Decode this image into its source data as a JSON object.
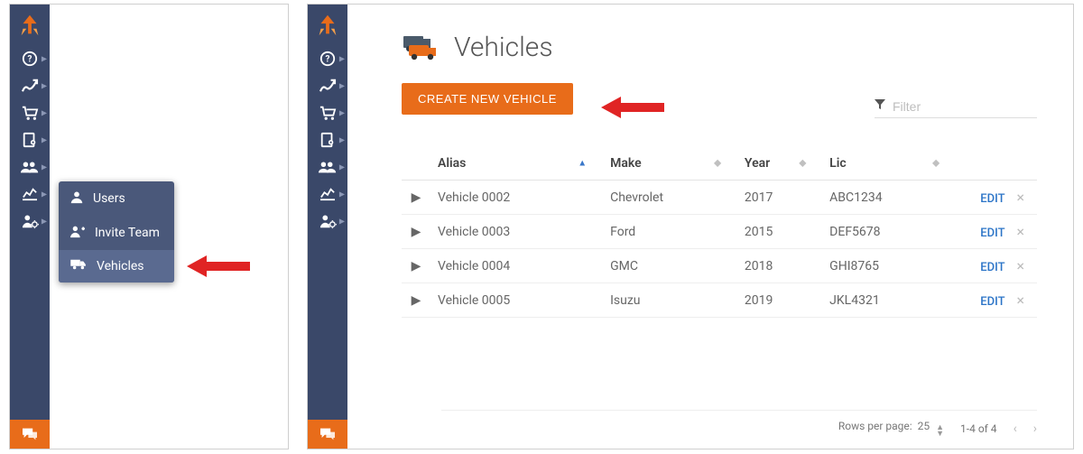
{
  "colors": {
    "sidebar_bg": "#3a4869",
    "flyout_bg": "#4a587a",
    "flyout_active_bg": "#5a6a90",
    "accent": "#e86c1a",
    "arrow": "#e02424",
    "link": "#2b74c7",
    "text": "#555555",
    "muted": "#bdbdbd"
  },
  "sidebar_icons": [
    "help-icon",
    "growth-icon",
    "cart-icon",
    "book-location-icon",
    "team-icon",
    "chart-line-icon",
    "user-gear-icon"
  ],
  "flyout": {
    "items": [
      {
        "label": "Users",
        "icon": "user-icon",
        "active": false
      },
      {
        "label": "Invite Team",
        "icon": "invite-icon",
        "active": false
      },
      {
        "label": "Vehicles",
        "icon": "truck-icon",
        "active": true
      }
    ]
  },
  "page": {
    "title": "Vehicles",
    "create_button": "CREATE NEW VEHICLE",
    "filter_placeholder": "Filter"
  },
  "table": {
    "columns": [
      "Alias",
      "Make",
      "Year",
      "Lic"
    ],
    "sort_column_index": 0,
    "sort_direction": "asc",
    "edit_label": "EDIT",
    "rows": [
      {
        "alias": "Vehicle 0002",
        "make": "Chevrolet",
        "year": "2017",
        "lic": "ABC1234"
      },
      {
        "alias": "Vehicle 0003",
        "make": "Ford",
        "year": "2015",
        "lic": "DEF5678"
      },
      {
        "alias": "Vehicle 0004",
        "make": "GMC",
        "year": "2018",
        "lic": "GHI8765"
      },
      {
        "alias": "Vehicle 0005",
        "make": "Isuzu",
        "year": "2019",
        "lic": "JKL4321"
      }
    ]
  },
  "pager": {
    "rows_per_page_label": "Rows per page:",
    "rows_per_page_value": "25",
    "range": "1-4 of 4"
  }
}
